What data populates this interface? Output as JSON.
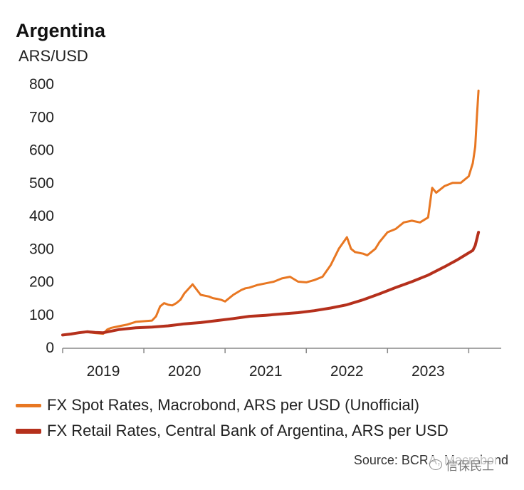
{
  "header": {
    "title": "Argentina",
    "unit": "ARS/USD"
  },
  "colors": {
    "spot": "#e87722",
    "retail": "#b5301c",
    "axis": "#888888"
  },
  "source": "Source: BCRA, Macrobond",
  "watermark": "信保民工",
  "chart_data": {
    "type": "line",
    "title": "Argentina",
    "ylabel": "ARS/USD",
    "ylim": [
      0,
      800
    ],
    "yticks": [
      0,
      100,
      200,
      300,
      400,
      500,
      600,
      700,
      800
    ],
    "xlim": [
      2018.5,
      2023.9
    ],
    "xtick_labels": [
      {
        "label": "2019",
        "at": 2019.0
      },
      {
        "label": "2020",
        "at": 2020.0
      },
      {
        "label": "2021",
        "at": 2021.0
      },
      {
        "label": "2022",
        "at": 2022.0
      },
      {
        "label": "2023",
        "at": 2023.0
      }
    ],
    "grid": false,
    "legend_position": "bottom",
    "series": [
      {
        "name": "FX Spot Rates, Macrobond, ARS per USD (Unofficial)",
        "color": "#e87722",
        "x": [
          2018.5,
          2018.6,
          2018.7,
          2018.8,
          2018.9,
          2019.0,
          2019.05,
          2019.1,
          2019.2,
          2019.3,
          2019.4,
          2019.5,
          2019.6,
          2019.65,
          2019.7,
          2019.75,
          2019.8,
          2019.85,
          2019.9,
          2019.95,
          2020.0,
          2020.1,
          2020.2,
          2020.3,
          2020.35,
          2020.4,
          2020.45,
          2020.5,
          2020.6,
          2020.7,
          2020.75,
          2020.8,
          2020.9,
          2021.0,
          2021.1,
          2021.2,
          2021.3,
          2021.4,
          2021.5,
          2021.6,
          2021.7,
          2021.8,
          2021.9,
          2022.0,
          2022.05,
          2022.1,
          2022.2,
          2022.25,
          2022.3,
          2022.35,
          2022.4,
          2022.5,
          2022.6,
          2022.7,
          2022.8,
          2022.9,
          2023.0,
          2023.05,
          2023.1,
          2023.2,
          2023.3,
          2023.4,
          2023.5,
          2023.55,
          2023.58,
          2023.6,
          2023.62
        ],
        "y": [
          38,
          40,
          45,
          47,
          44,
          42,
          55,
          60,
          65,
          70,
          78,
          80,
          82,
          95,
          125,
          135,
          130,
          128,
          135,
          145,
          165,
          192,
          160,
          155,
          150,
          148,
          145,
          140,
          160,
          175,
          180,
          182,
          190,
          195,
          200,
          210,
          215,
          200,
          198,
          205,
          215,
          250,
          300,
          335,
          300,
          290,
          285,
          280,
          290,
          300,
          320,
          350,
          360,
          380,
          385,
          380,
          395,
          485,
          470,
          490,
          500,
          500,
          520,
          560,
          610,
          700,
          780
        ]
      },
      {
        "name": "FX Retail Rates, Central Bank of Argentina, ARS per USD",
        "color": "#b5301c",
        "x": [
          2018.5,
          2018.6,
          2018.7,
          2018.8,
          2018.9,
          2019.0,
          2019.2,
          2019.4,
          2019.6,
          2019.8,
          2020.0,
          2020.2,
          2020.4,
          2020.6,
          2020.8,
          2021.0,
          2021.2,
          2021.4,
          2021.6,
          2021.8,
          2022.0,
          2022.2,
          2022.4,
          2022.6,
          2022.8,
          2023.0,
          2023.2,
          2023.35,
          2023.45,
          2023.55,
          2023.58,
          2023.6,
          2023.62
        ],
        "y": [
          38,
          41,
          45,
          48,
          46,
          45,
          55,
          60,
          62,
          66,
          72,
          76,
          82,
          88,
          95,
          98,
          102,
          106,
          112,
          120,
          130,
          145,
          163,
          182,
          200,
          220,
          245,
          265,
          280,
          295,
          310,
          330,
          350
        ]
      }
    ]
  }
}
